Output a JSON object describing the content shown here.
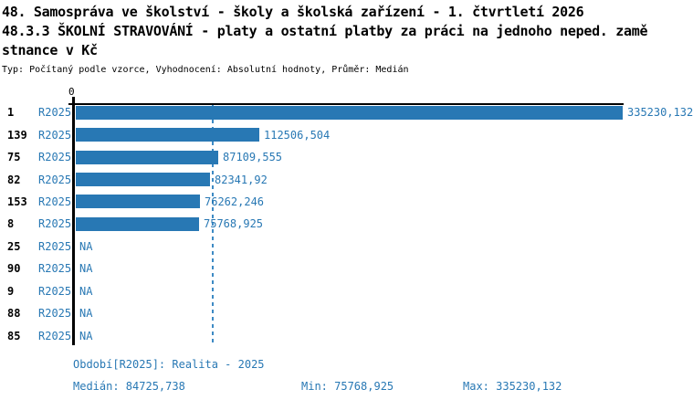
{
  "header": {
    "title_line1": "48. Samospráva ve školství - školy a školská zařízení - 1. čtvrtletí 2026",
    "title_line2": "48.3.3 ŠKOLNÍ STRAVOVÁNÍ - platy a ostatní platby za práci na jednoho neped. zamě",
    "title_line3": "stnance v Kč",
    "subtitle": "Typ: Počítaný podle vzorce, Vyhodnocení: Absolutní hodnoty, Průměr: Medián"
  },
  "colors": {
    "bar": "#2878b4",
    "blue_text": "#2878b4",
    "axis": "#000000",
    "median_line": "#3d8ac4"
  },
  "chart_data": {
    "type": "bar",
    "orientation": "horizontal",
    "value_axis": {
      "zero_label": "0",
      "min": 0,
      "max_value": 335230.132,
      "grid": false
    },
    "median_value": 84725.738,
    "rows": [
      {
        "category": "1",
        "period": "R2025",
        "value": 335230.132,
        "value_label": "335230,132"
      },
      {
        "category": "139",
        "period": "R2025",
        "value": 112506.504,
        "value_label": "112506,504"
      },
      {
        "category": "75",
        "period": "R2025",
        "value": 87109.555,
        "value_label": "87109,555"
      },
      {
        "category": "82",
        "period": "R2025",
        "value": 82341.92,
        "value_label": "82341,92"
      },
      {
        "category": "153",
        "period": "R2025",
        "value": 76262.246,
        "value_label": "76262,246"
      },
      {
        "category": "8",
        "period": "R2025",
        "value": 75768.925,
        "value_label": "75768,925"
      },
      {
        "category": "25",
        "period": "R2025",
        "value": null,
        "value_label": "NA"
      },
      {
        "category": "90",
        "period": "R2025",
        "value": null,
        "value_label": "NA"
      },
      {
        "category": "9",
        "period": "R2025",
        "value": null,
        "value_label": "NA"
      },
      {
        "category": "88",
        "period": "R2025",
        "value": null,
        "value_label": "NA"
      },
      {
        "category": "85",
        "period": "R2025",
        "value": null,
        "value_label": "NA"
      }
    ]
  },
  "footer": {
    "period_info": "Období[R2025]: Realita - 2025",
    "median_label": "Medián: 84725,738",
    "min_label": "Min: 75768,925",
    "max_label": "Max: 335230,132"
  }
}
